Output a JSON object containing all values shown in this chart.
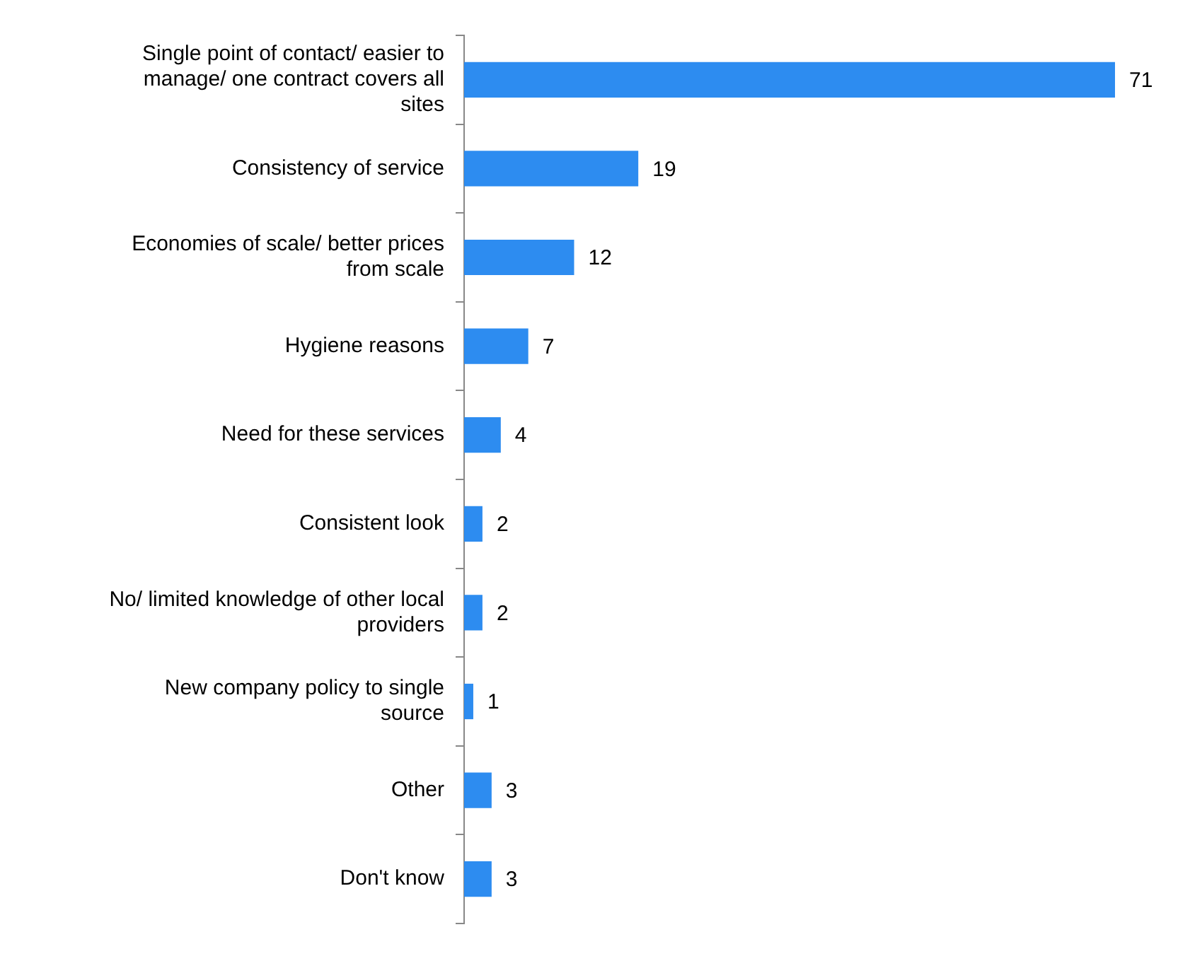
{
  "chart_data": {
    "type": "bar",
    "orientation": "horizontal",
    "tick_labels": "y",
    "categories": [
      "Single point of contact/ easier to manage/ one contract covers all sites",
      "Consistency of service",
      "Economies of scale/ better prices from scale",
      "Hygiene reasons",
      "Need for these services",
      "Consistent look",
      "No/ limited knowledge of other local providers",
      "New company policy to single source",
      "Other",
      "Don't know"
    ],
    "values": [
      71,
      19,
      12,
      7,
      4,
      2,
      2,
      1,
      3,
      3
    ],
    "color": "#2d8cf0",
    "data_labels": true,
    "legend": false
  }
}
